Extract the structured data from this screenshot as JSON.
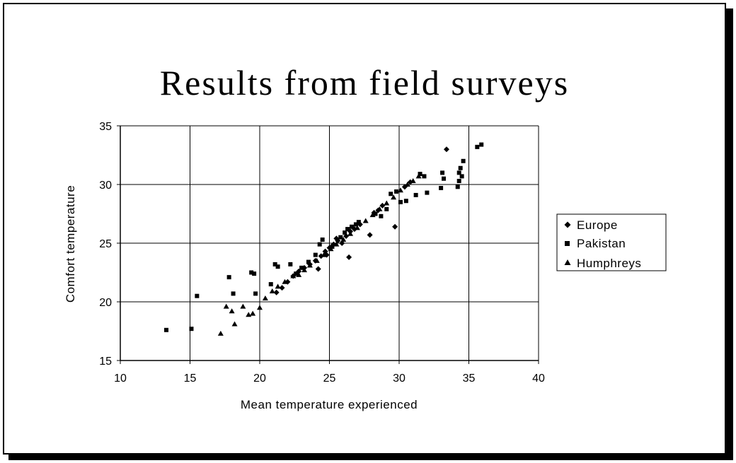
{
  "chart_data": {
    "type": "scatter",
    "title": "Results from field surveys",
    "xlabel": "Mean temperature experienced",
    "ylabel": "Comfort temperature",
    "xlim": [
      10,
      40
    ],
    "ylim": [
      15,
      35
    ],
    "x_ticks": [
      10,
      15,
      20,
      25,
      30,
      35,
      40
    ],
    "y_ticks": [
      15,
      20,
      25,
      30,
      35
    ],
    "grid": true,
    "legend_position": "right",
    "series": [
      {
        "name": "Europe",
        "marker": "diamond",
        "color": "#000000",
        "points": [
          [
            21.2,
            20.8
          ],
          [
            21.6,
            21.2
          ],
          [
            22.0,
            21.7
          ],
          [
            22.4,
            22.2
          ],
          [
            22.8,
            22.6
          ],
          [
            23.2,
            22.9
          ],
          [
            23.6,
            23.2
          ],
          [
            24.0,
            23.5
          ],
          [
            24.2,
            22.8
          ],
          [
            24.4,
            23.9
          ],
          [
            24.7,
            24.3
          ],
          [
            25.0,
            24.6
          ],
          [
            25.3,
            24.9
          ],
          [
            25.6,
            25.2
          ],
          [
            25.9,
            25.0
          ],
          [
            26.2,
            25.6
          ],
          [
            26.5,
            26.0
          ],
          [
            26.4,
            23.8
          ],
          [
            26.8,
            26.2
          ],
          [
            27.2,
            26.6
          ],
          [
            27.9,
            25.7
          ],
          [
            28.2,
            27.6
          ],
          [
            28.5,
            27.8
          ],
          [
            28.8,
            28.2
          ],
          [
            29.7,
            26.4
          ],
          [
            30.4,
            29.8
          ],
          [
            30.8,
            30.2
          ],
          [
            33.4,
            33.0
          ],
          [
            24.8,
            24.0
          ],
          [
            25.5,
            25.4
          ]
        ]
      },
      {
        "name": "Pakistan",
        "marker": "square",
        "color": "#000000",
        "points": [
          [
            13.3,
            17.6
          ],
          [
            15.1,
            17.7
          ],
          [
            15.5,
            20.5
          ],
          [
            17.8,
            22.1
          ],
          [
            18.1,
            20.7
          ],
          [
            19.4,
            22.5
          ],
          [
            19.6,
            22.4
          ],
          [
            19.7,
            20.7
          ],
          [
            20.8,
            21.5
          ],
          [
            21.1,
            23.2
          ],
          [
            21.3,
            23.0
          ],
          [
            22.2,
            23.2
          ],
          [
            22.6,
            22.4
          ],
          [
            23.0,
            22.9
          ],
          [
            23.5,
            23.4
          ],
          [
            24.0,
            24.0
          ],
          [
            24.3,
            24.9
          ],
          [
            24.5,
            25.3
          ],
          [
            25.2,
            24.7
          ],
          [
            25.8,
            25.5
          ],
          [
            26.1,
            25.9
          ],
          [
            26.3,
            26.2
          ],
          [
            26.6,
            26.4
          ],
          [
            26.9,
            26.6
          ],
          [
            27.1,
            26.8
          ],
          [
            28.3,
            27.5
          ],
          [
            28.7,
            27.3
          ],
          [
            29.1,
            27.9
          ],
          [
            29.4,
            29.2
          ],
          [
            29.8,
            29.4
          ],
          [
            30.1,
            28.5
          ],
          [
            30.5,
            28.6
          ],
          [
            31.2,
            29.1
          ],
          [
            31.5,
            30.9
          ],
          [
            31.8,
            30.7
          ],
          [
            32.0,
            29.3
          ],
          [
            33.0,
            29.7
          ],
          [
            33.1,
            31.0
          ],
          [
            33.2,
            30.5
          ],
          [
            34.2,
            29.8
          ],
          [
            34.3,
            30.3
          ],
          [
            34.3,
            31.0
          ],
          [
            34.4,
            31.4
          ],
          [
            34.5,
            30.7
          ],
          [
            34.6,
            32.0
          ],
          [
            35.6,
            33.2
          ],
          [
            35.9,
            33.4
          ]
        ]
      },
      {
        "name": "Humphreys",
        "marker": "triangle",
        "color": "#000000",
        "points": [
          [
            17.2,
            17.3
          ],
          [
            17.6,
            19.6
          ],
          [
            18.0,
            19.2
          ],
          [
            18.2,
            18.1
          ],
          [
            18.8,
            19.6
          ],
          [
            19.2,
            18.9
          ],
          [
            19.5,
            19.0
          ],
          [
            20.0,
            19.5
          ],
          [
            20.4,
            20.3
          ],
          [
            20.9,
            20.9
          ],
          [
            21.3,
            21.3
          ],
          [
            21.8,
            21.7
          ],
          [
            22.4,
            22.2
          ],
          [
            22.8,
            22.3
          ],
          [
            23.2,
            22.7
          ],
          [
            23.6,
            23.1
          ],
          [
            24.1,
            23.5
          ],
          [
            24.6,
            24.0
          ],
          [
            25.1,
            24.5
          ],
          [
            25.5,
            24.9
          ],
          [
            26.0,
            25.3
          ],
          [
            26.5,
            25.8
          ],
          [
            27.0,
            26.3
          ],
          [
            27.6,
            26.9
          ],
          [
            28.1,
            27.4
          ],
          [
            28.6,
            27.9
          ],
          [
            29.1,
            28.4
          ],
          [
            29.6,
            28.9
          ],
          [
            30.1,
            29.5
          ],
          [
            30.6,
            30.0
          ],
          [
            31.0,
            30.3
          ],
          [
            31.4,
            30.7
          ]
        ]
      }
    ]
  }
}
